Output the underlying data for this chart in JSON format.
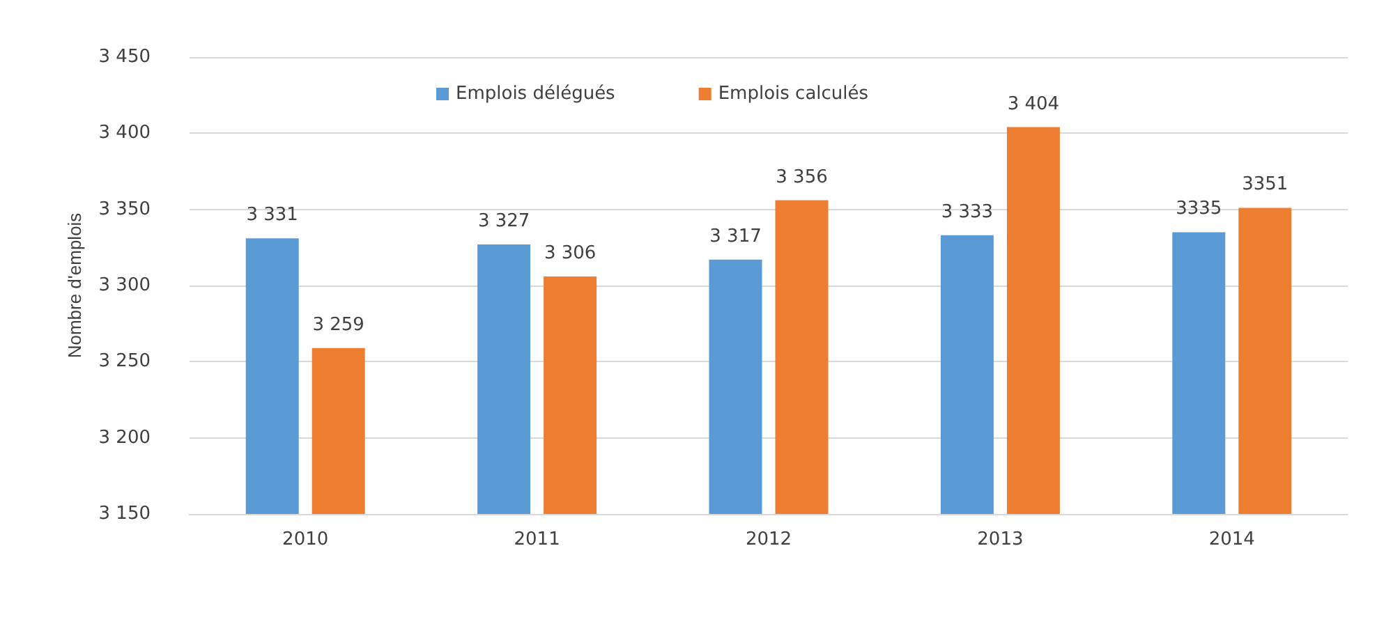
{
  "chart_data": {
    "type": "bar",
    "ylabel": "Nombre d'emplois",
    "categories": [
      "2010",
      "2011",
      "2012",
      "2013",
      "2014"
    ],
    "series": [
      {
        "name": "Emplois délégués",
        "color": "#5b9bd5",
        "values": [
          3331,
          3327,
          3317,
          3333,
          3335
        ],
        "value_labels": [
          "3 331",
          "3 327",
          "3 317",
          "3 333",
          "3335"
        ]
      },
      {
        "name": "Emplois calculés",
        "color": "#ed7d31",
        "values": [
          3259,
          3306,
          3356,
          3404,
          3351
        ],
        "value_labels": [
          "3 259",
          "3 306",
          "3 356",
          "3 404",
          "3351"
        ]
      }
    ],
    "ylim": [
      3150,
      3450
    ],
    "yticks": [
      {
        "value": 3150,
        "label": "3 150"
      },
      {
        "value": 3200,
        "label": "3 200"
      },
      {
        "value": 3250,
        "label": "3 250"
      },
      {
        "value": 3300,
        "label": "3 300"
      },
      {
        "value": 3350,
        "label": "3 350"
      },
      {
        "value": 3400,
        "label": "3 400"
      },
      {
        "value": 3450,
        "label": "3 450"
      }
    ],
    "grid": "y",
    "legend": "top"
  }
}
